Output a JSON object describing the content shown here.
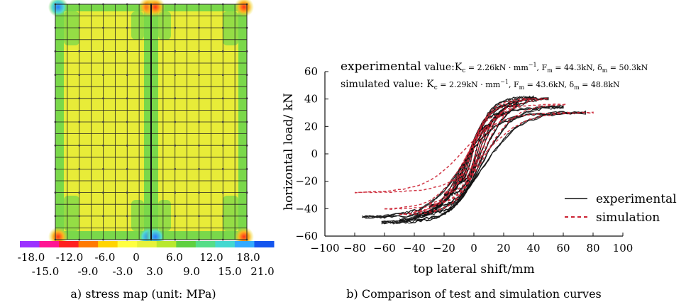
{
  "panel_a": {
    "caption": "a) stress map (unit: MPa)",
    "colorbar_labels_top": [
      "-18.0",
      "-12.0",
      "-6.0",
      "0",
      "6.0",
      "12.0",
      "18.0"
    ],
    "colorbar_labels_bottom": [
      "-15.0",
      "-9.0",
      "-3.0",
      "3.0",
      "9.0",
      "15.0",
      "21.0"
    ],
    "colorbar_colors": [
      "#9b30ff",
      "#ff1493",
      "#ff2020",
      "#ff7a00",
      "#ffd400",
      "#ffff40",
      "#e6f23a",
      "#b8e82e",
      "#5fd040",
      "#55dd88",
      "#44d8d0",
      "#33aaff",
      "#1455ee"
    ],
    "field_colors": {
      "base": "#e8ec38",
      "edge": "#7ad84a",
      "hot": "#ff4020",
      "cold": "#33aaff"
    }
  },
  "panel_b": {
    "caption": "b) Comparison of test and simulation curves",
    "annotation_line1_prefix": "experimental",
    "annotation_line1_body": " value:K",
    "annotation_line1_rest": " = 2.26kN · mm",
    "annotation_line1_tail": ", F",
    "annotation_line1_tail2": " = 44.3kN, δ",
    "annotation_line1_tail3": " = 50.3kN",
    "annotation_line2_body": "simulated value: K",
    "annotation_line2_rest": " = 2.29kN · mm",
    "annotation_line2_tail": ", F",
    "annotation_line2_tail2": " = 43.6kN, δ",
    "annotation_line2_tail3": " = 48.8kN",
    "sub_c": "c",
    "sub_m": "m",
    "sup_inv": "−1"
  },
  "chart_data": {
    "type": "line",
    "xlabel": "top lateral shift/mm",
    "ylabel": "horizontal load/ kN",
    "xlim": [
      -100,
      100
    ],
    "ylim": [
      -60,
      60
    ],
    "xticks": [
      -100,
      -80,
      -60,
      -40,
      -20,
      0,
      20,
      40,
      60,
      80,
      100
    ],
    "yticks": [
      -60,
      -40,
      -20,
      0,
      20,
      40,
      60
    ],
    "legend_position": "lower-right",
    "series": [
      {
        "name": "experimental",
        "color": "#111111",
        "style": "solid",
        "loops": [
          {
            "amp_pos": 10,
            "amp_neg": -10,
            "peak_pos": 20,
            "peak_neg": -20
          },
          {
            "amp_pos": 20,
            "amp_neg": -20,
            "peak_pos": 29,
            "peak_neg": -30
          },
          {
            "amp_pos": 30,
            "amp_neg": -30,
            "peak_pos": 36,
            "peak_neg": -38
          },
          {
            "amp_pos": 40,
            "amp_neg": -40,
            "peak_pos": 41,
            "peak_neg": -44
          },
          {
            "amp_pos": 50,
            "amp_neg": -50,
            "peak_pos": 40,
            "peak_neg": -48
          },
          {
            "amp_pos": 60,
            "amp_neg": -62,
            "peak_pos": 34,
            "peak_neg": -50
          },
          {
            "amp_pos": 75,
            "amp_neg": -75,
            "peak_pos": 30,
            "peak_neg": -46
          }
        ]
      },
      {
        "name": "simulation",
        "color": "#cc2233",
        "style": "dashed",
        "loops": [
          {
            "amp_pos": 10,
            "amp_neg": -10,
            "peak_pos": 19,
            "peak_neg": -19
          },
          {
            "amp_pos": 20,
            "amp_neg": -20,
            "peak_pos": 28,
            "peak_neg": -28
          },
          {
            "amp_pos": 30,
            "amp_neg": -30,
            "peak_pos": 35,
            "peak_neg": -36
          },
          {
            "amp_pos": 40,
            "amp_neg": -40,
            "peak_pos": 40,
            "peak_neg": -42
          },
          {
            "amp_pos": 50,
            "amp_neg": -50,
            "peak_pos": 40,
            "peak_neg": -44
          },
          {
            "amp_pos": 62,
            "amp_neg": -60,
            "peak_pos": 36,
            "peak_neg": -40
          },
          {
            "amp_pos": 80,
            "amp_neg": -80,
            "peak_pos": 30,
            "peak_neg": -28
          }
        ]
      }
    ]
  }
}
